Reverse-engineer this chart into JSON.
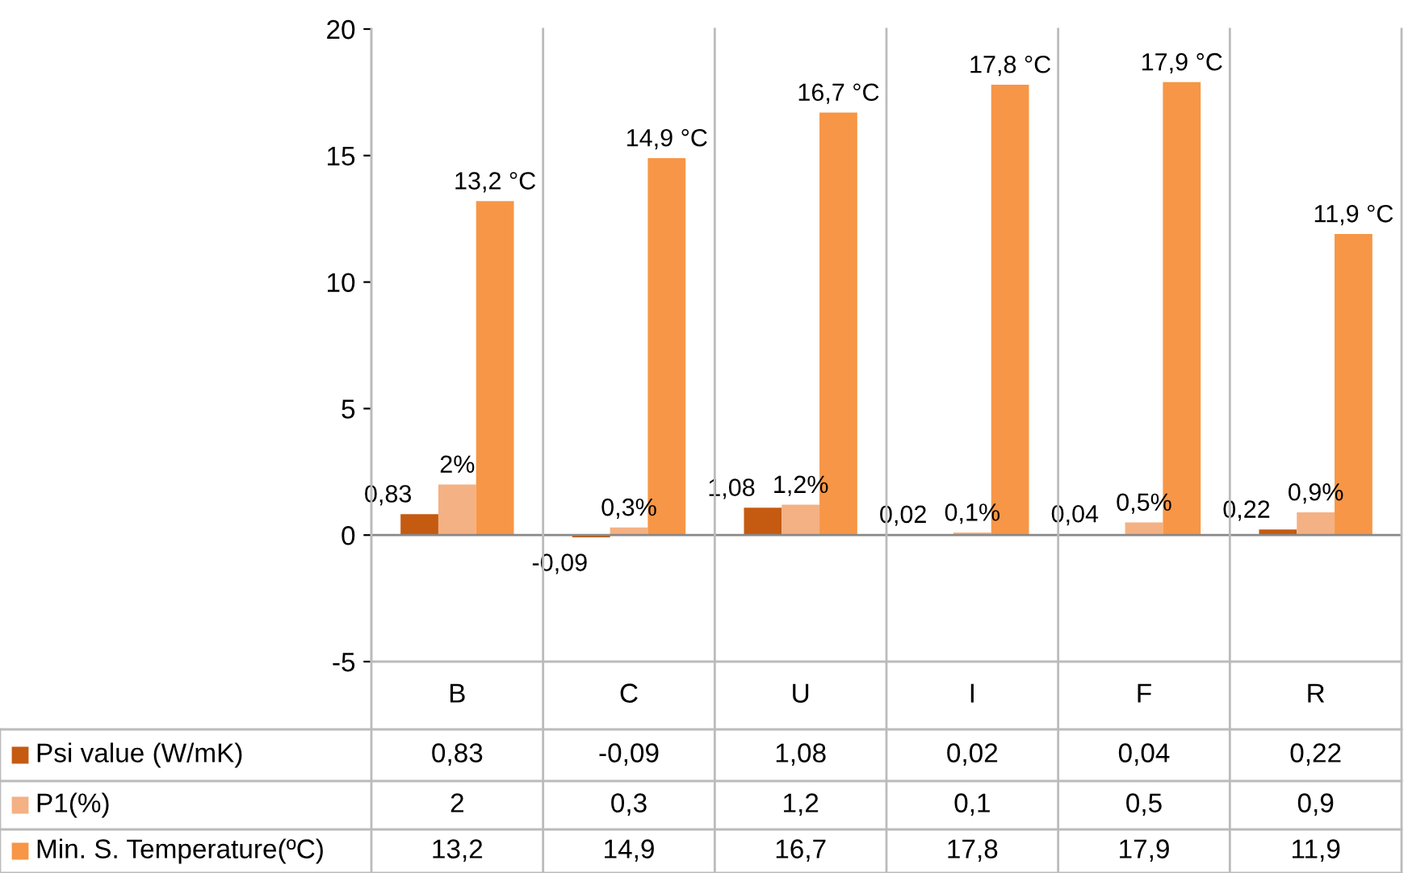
{
  "chart_data": {
    "type": "bar",
    "categories": [
      "B",
      "C",
      "U",
      "I",
      "F",
      "R"
    ],
    "series": [
      {
        "name": "Psi value (W/mK)",
        "color": "#c55a11",
        "values": [
          0.83,
          -0.09,
          1.08,
          0.02,
          0.04,
          0.22
        ],
        "value_labels": [
          "0,83",
          "-0,09",
          "1,08",
          "0,02",
          "0,04",
          "0,22"
        ]
      },
      {
        "name": "P1(%)",
        "color": "#f4b183",
        "values": [
          2,
          0.3,
          1.2,
          0.1,
          0.5,
          0.9
        ],
        "value_labels": [
          "2%",
          "0,3%",
          "1,2%",
          "0,1%",
          "0,5%",
          "0,9%"
        ]
      },
      {
        "name": "Min. S. Temperature(ºC)",
        "color": "#f79646",
        "values": [
          13.2,
          14.9,
          16.7,
          17.8,
          17.9,
          11.9
        ],
        "value_labels": [
          "13,2 °C",
          "14,9 °C",
          "16,7 °C",
          "17,8 °C",
          "17,9 °C",
          "11,9 °C"
        ]
      }
    ],
    "ylim": [
      -5,
      20
    ],
    "yticks": [
      -5,
      0,
      5,
      10,
      15,
      20
    ],
    "grid": false,
    "legend": "bottom",
    "annotations": [
      "0,83",
      "-0,09",
      "1,08",
      "0,02",
      "0,04",
      "0,22",
      "2",
      "0,3",
      "1,2",
      "0,1",
      "0,5",
      "0,9",
      "13,2",
      "14,9",
      "16,7",
      "17,8",
      "17,9",
      "11,9"
    ]
  }
}
